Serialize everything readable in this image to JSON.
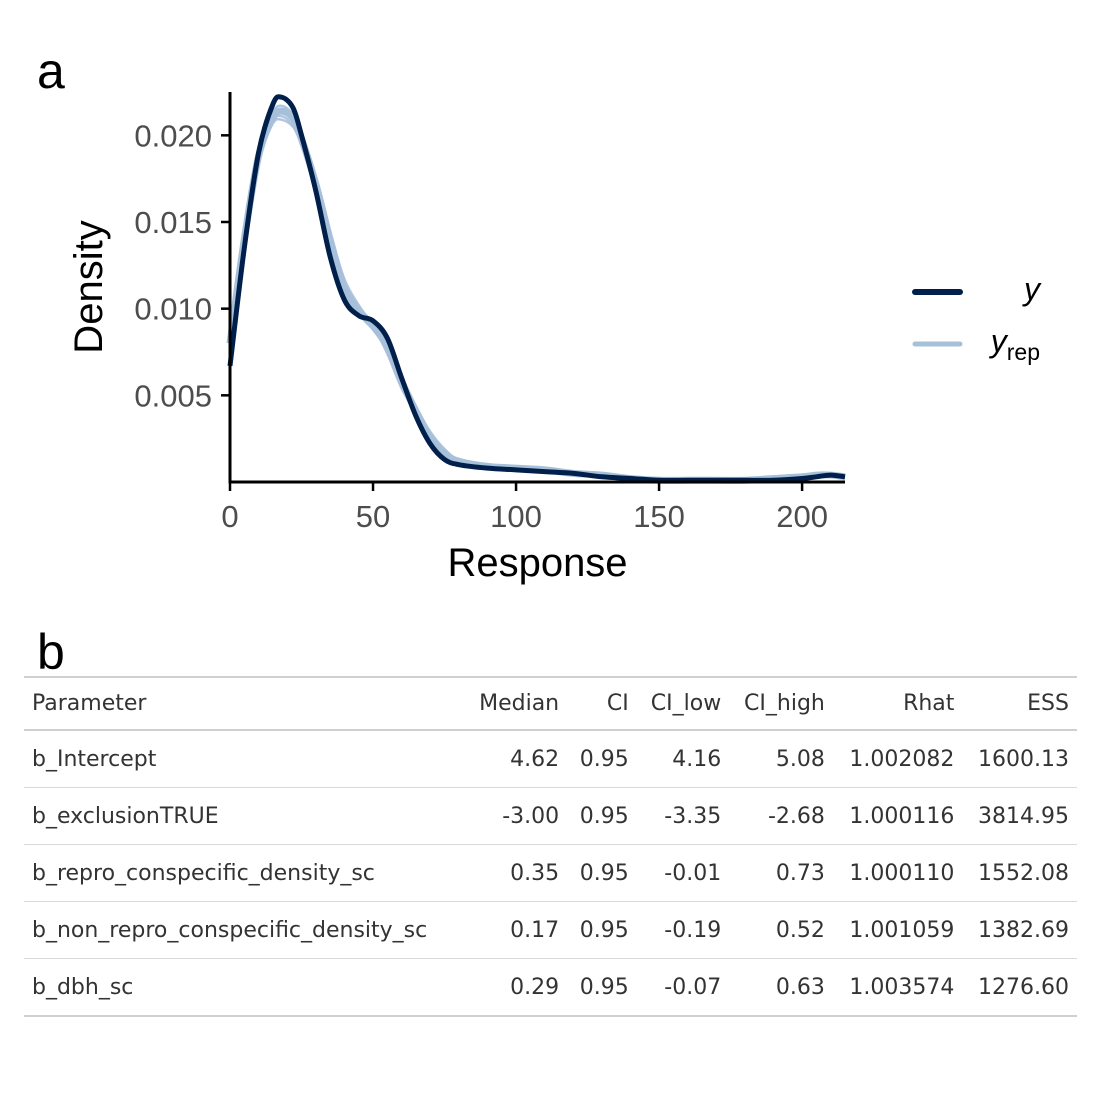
{
  "panel_a": {
    "label": "a",
    "chart_data": {
      "type": "line",
      "title": "",
      "xlabel": "Response",
      "ylabel": "Density",
      "xlim": [
        0,
        215
      ],
      "ylim": [
        0,
        0.0225
      ],
      "xticks": [
        0,
        50,
        100,
        150,
        200
      ],
      "xtick_labels": [
        "0",
        "50",
        "100",
        "150",
        "200"
      ],
      "yticks": [
        0.005,
        0.01,
        0.015,
        0.02
      ],
      "ytick_labels": [
        "0.005",
        "0.010",
        "0.015",
        "0.020"
      ],
      "grid": false,
      "legend_position": "right",
      "series": [
        {
          "name": "y",
          "color": "#011f4b",
          "x": [
            0,
            5,
            10,
            15,
            18,
            22,
            25,
            30,
            35,
            40,
            45,
            50,
            55,
            60,
            65,
            70,
            75,
            80,
            90,
            100,
            110,
            120,
            130,
            140,
            150,
            160,
            170,
            180,
            190,
            200,
            205,
            210,
            215
          ],
          "y": [
            0.0067,
            0.0135,
            0.019,
            0.0218,
            0.0222,
            0.0216,
            0.02,
            0.0168,
            0.013,
            0.0105,
            0.0096,
            0.0093,
            0.0083,
            0.006,
            0.0038,
            0.0022,
            0.0013,
            0.001,
            0.0008,
            0.0007,
            0.0006,
            0.0005,
            0.0003,
            0.0002,
            0.0001,
            0.0001,
            0.0001,
            0.0001,
            0.0001,
            0.0002,
            0.0003,
            0.0004,
            0.0003
          ]
        },
        {
          "name": "yrep",
          "color": "#a7c0da",
          "draws": [
            {
              "x": [
                0,
                5,
                10,
                15,
                18,
                22,
                25,
                30,
                35,
                40,
                45,
                50,
                55,
                60,
                65,
                70,
                75,
                80,
                90,
                100,
                110,
                120,
                130,
                140,
                150,
                160,
                170,
                180,
                190,
                200,
                205,
                210,
                215
              ],
              "y": [
                0.008,
                0.014,
                0.0188,
                0.021,
                0.0214,
                0.021,
                0.0198,
                0.0172,
                0.014,
                0.0112,
                0.0099,
                0.009,
                0.0078,
                0.0058,
                0.0041,
                0.0026,
                0.0016,
                0.0012,
                0.0009,
                0.0008,
                0.0007,
                0.0005,
                0.0004,
                0.0002,
                0.0001,
                0.0001,
                0.0001,
                0.0001,
                0.0002,
                0.0003,
                0.0004,
                0.0004,
                0.0003
              ]
            },
            {
              "x": [
                0,
                5,
                10,
                15,
                18,
                22,
                25,
                30,
                35,
                40,
                45,
                50,
                55,
                60,
                65,
                70,
                75,
                80,
                90,
                100,
                110,
                120,
                130,
                140,
                150,
                160,
                170,
                180,
                190,
                200,
                205,
                210,
                215
              ],
              "y": [
                0.007,
                0.0132,
                0.0186,
                0.0208,
                0.0211,
                0.0206,
                0.0194,
                0.017,
                0.0142,
                0.0115,
                0.0101,
                0.0091,
                0.0076,
                0.0055,
                0.0039,
                0.0027,
                0.0018,
                0.0012,
                0.0009,
                0.0008,
                0.0007,
                0.0004,
                0.0004,
                0.0003,
                0.0001,
                0.0001,
                0.0001,
                0.0001,
                0.0001,
                0.0002,
                0.0003,
                0.0004,
                0.0003
              ]
            },
            {
              "x": [
                0,
                5,
                10,
                15,
                18,
                22,
                25,
                30,
                35,
                40,
                45,
                50,
                55,
                60,
                65,
                70,
                75,
                80,
                90,
                100,
                110,
                120,
                130,
                140,
                150,
                160,
                170,
                180,
                190,
                200,
                205,
                210,
                215
              ],
              "y": [
                0.0075,
                0.0138,
                0.0191,
                0.0213,
                0.0217,
                0.0212,
                0.0199,
                0.0173,
                0.0138,
                0.011,
                0.0097,
                0.0088,
                0.0079,
                0.006,
                0.0043,
                0.0029,
                0.0019,
                0.0013,
                0.001,
                0.0008,
                0.0006,
                0.0005,
                0.0004,
                0.0002,
                0.0001,
                0.0001,
                0.0001,
                0.0001,
                0.0001,
                0.0002,
                0.0004,
                0.0004,
                0.0003
              ]
            },
            {
              "x": [
                0,
                5,
                10,
                15,
                18,
                22,
                25,
                30,
                35,
                40,
                45,
                50,
                55,
                60,
                65,
                70,
                75,
                80,
                90,
                100,
                110,
                120,
                130,
                140,
                150,
                160,
                170,
                180,
                190,
                200,
                205,
                210,
                215
              ],
              "y": [
                0.0085,
                0.0145,
                0.019,
                0.0207,
                0.0209,
                0.0205,
                0.0195,
                0.0175,
                0.0144,
                0.0117,
                0.0102,
                0.009,
                0.0074,
                0.0054,
                0.004,
                0.0028,
                0.0018,
                0.0013,
                0.001,
                0.0009,
                0.0007,
                0.0005,
                0.0004,
                0.0002,
                0.0001,
                0.0001,
                0.0001,
                0.0001,
                0.0002,
                0.0002,
                0.0003,
                0.0004,
                0.0004
              ]
            }
          ]
        }
      ],
      "legend": {
        "items": [
          {
            "key": "y",
            "base": "y",
            "sub": "",
            "color": "#011f4b"
          },
          {
            "key": "yrep",
            "base": "y",
            "sub": "rep",
            "color": "#a7c0da"
          }
        ]
      }
    }
  },
  "panel_b": {
    "label": "b",
    "columns": [
      "Parameter",
      "Median",
      "CI",
      "CI_low",
      "CI_high",
      "Rhat",
      "ESS"
    ],
    "rows": [
      [
        "b_Intercept",
        "4.62",
        "0.95",
        "4.16",
        "5.08",
        "1.002082",
        "1600.13"
      ],
      [
        "b_exclusionTRUE",
        "-3.00",
        "0.95",
        "-3.35",
        "-2.68",
        "1.000116",
        "3814.95"
      ],
      [
        "b_repro_conspecific_density_sc",
        "0.35",
        "0.95",
        "-0.01",
        "0.73",
        "1.000110",
        "1552.08"
      ],
      [
        "b_non_repro_conspecific_density_sc",
        "0.17",
        "0.95",
        "-0.19",
        "0.52",
        "1.001059",
        "1382.69"
      ],
      [
        "b_dbh_sc",
        "0.29",
        "0.95",
        "-0.07",
        "0.63",
        "1.003574",
        "1276.60"
      ]
    ]
  }
}
